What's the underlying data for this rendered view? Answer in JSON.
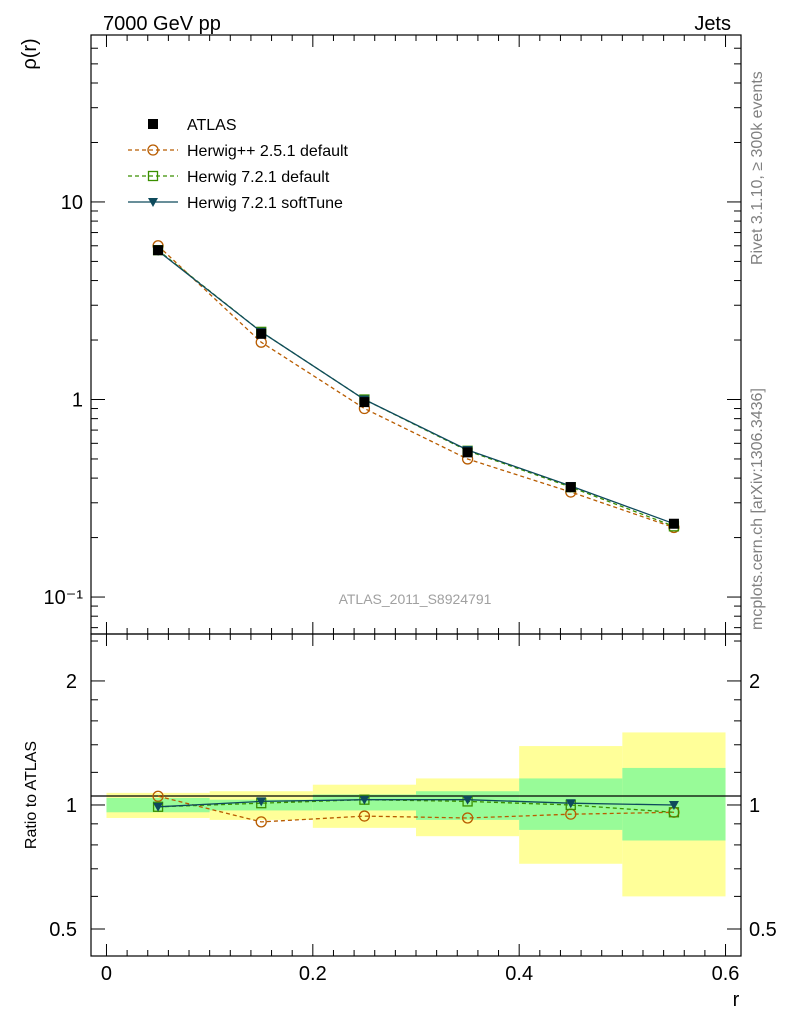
{
  "header": {
    "left": "7000 GeV pp",
    "right": "Jets"
  },
  "side_text": {
    "rivet": "Rivet 3.1.10, ≥ 300k events",
    "mcplots": "mcplots.cern.ch [arXiv:1306.3436]"
  },
  "watermark": "ATLAS_2011_S8924791",
  "chart_data": [
    {
      "type": "line",
      "panel": "main",
      "yscale": "log",
      "ylabel": "ρ(r)",
      "xlabel": "",
      "xlim": [
        -0.015,
        0.615
      ],
      "ylim": [
        0.065,
        70
      ],
      "ytick_labels": [
        "10⁻¹",
        "1",
        "10"
      ],
      "ytick_values": [
        0.1,
        1,
        10
      ],
      "x": [
        0.05,
        0.15,
        0.25,
        0.35,
        0.45,
        0.55
      ],
      "series": [
        {
          "name": "ATLAS",
          "color": "#000000",
          "marker": "square-filled",
          "style": "none",
          "values": [
            5.7,
            2.15,
            0.97,
            0.54,
            0.36,
            0.235
          ]
        },
        {
          "name": "Herwig++ 2.5.1 default",
          "color": "#b85c00",
          "marker": "circle-open",
          "style": "dashed",
          "values": [
            6.0,
            1.95,
            0.9,
            0.5,
            0.34,
            0.225
          ]
        },
        {
          "name": "Herwig 7.2.1 default",
          "color": "#3a8f00",
          "marker": "square-open",
          "style": "dashed",
          "values": [
            5.7,
            2.2,
            1.0,
            0.55,
            0.36,
            0.228
          ]
        },
        {
          "name": "Herwig 7.2.1 softTune",
          "color": "#0e4a5c",
          "marker": "triangle-down-filled",
          "style": "solid",
          "values": [
            5.65,
            2.2,
            1.0,
            0.555,
            0.365,
            0.235
          ]
        }
      ]
    },
    {
      "type": "line",
      "panel": "ratio",
      "yscale": "log",
      "ylabel": "Ratio to ATLAS",
      "xlabel": "r",
      "xlim": [
        -0.015,
        0.615
      ],
      "ylim": [
        0.43,
        2.6
      ],
      "ytick_labels": [
        "0.5",
        "1",
        "2"
      ],
      "ytick_values": [
        0.5,
        1,
        2
      ],
      "xtick_labels": [
        "0",
        "0.2",
        "0.4",
        "0.6"
      ],
      "xtick_values": [
        0,
        0.2,
        0.4,
        0.6
      ],
      "x": [
        0.05,
        0.15,
        0.25,
        0.35,
        0.45,
        0.55
      ],
      "bin_edges": [
        0,
        0.1,
        0.2,
        0.3,
        0.4,
        0.5,
        0.6
      ],
      "uncertainty_bands": {
        "stat": {
          "color": "#98fb98",
          "low": [
            0.96,
            0.97,
            0.97,
            0.92,
            0.87,
            0.82
          ],
          "high": [
            1.04,
            1.03,
            1.06,
            1.08,
            1.16,
            1.23
          ]
        },
        "total": {
          "color": "#ffff99",
          "low": [
            0.93,
            0.92,
            0.88,
            0.84,
            0.72,
            0.6
          ],
          "high": [
            1.07,
            1.08,
            1.12,
            1.16,
            1.39,
            1.5
          ]
        }
      },
      "series": [
        {
          "name": "Herwig++ 2.5.1 default",
          "color": "#b85c00",
          "marker": "circle-open",
          "style": "dashed",
          "values": [
            1.05,
            0.91,
            0.94,
            0.93,
            0.95,
            0.96
          ]
        },
        {
          "name": "Herwig 7.2.1 default",
          "color": "#3a8f00",
          "marker": "square-open",
          "style": "dashed",
          "values": [
            0.99,
            1.01,
            1.03,
            1.02,
            1.0,
            0.96
          ]
        },
        {
          "name": "Herwig 7.2.1 softTune",
          "color": "#0e4a5c",
          "marker": "triangle-down-filled",
          "style": "solid",
          "values": [
            0.99,
            1.02,
            1.03,
            1.03,
            1.01,
            1.0
          ]
        }
      ]
    }
  ]
}
